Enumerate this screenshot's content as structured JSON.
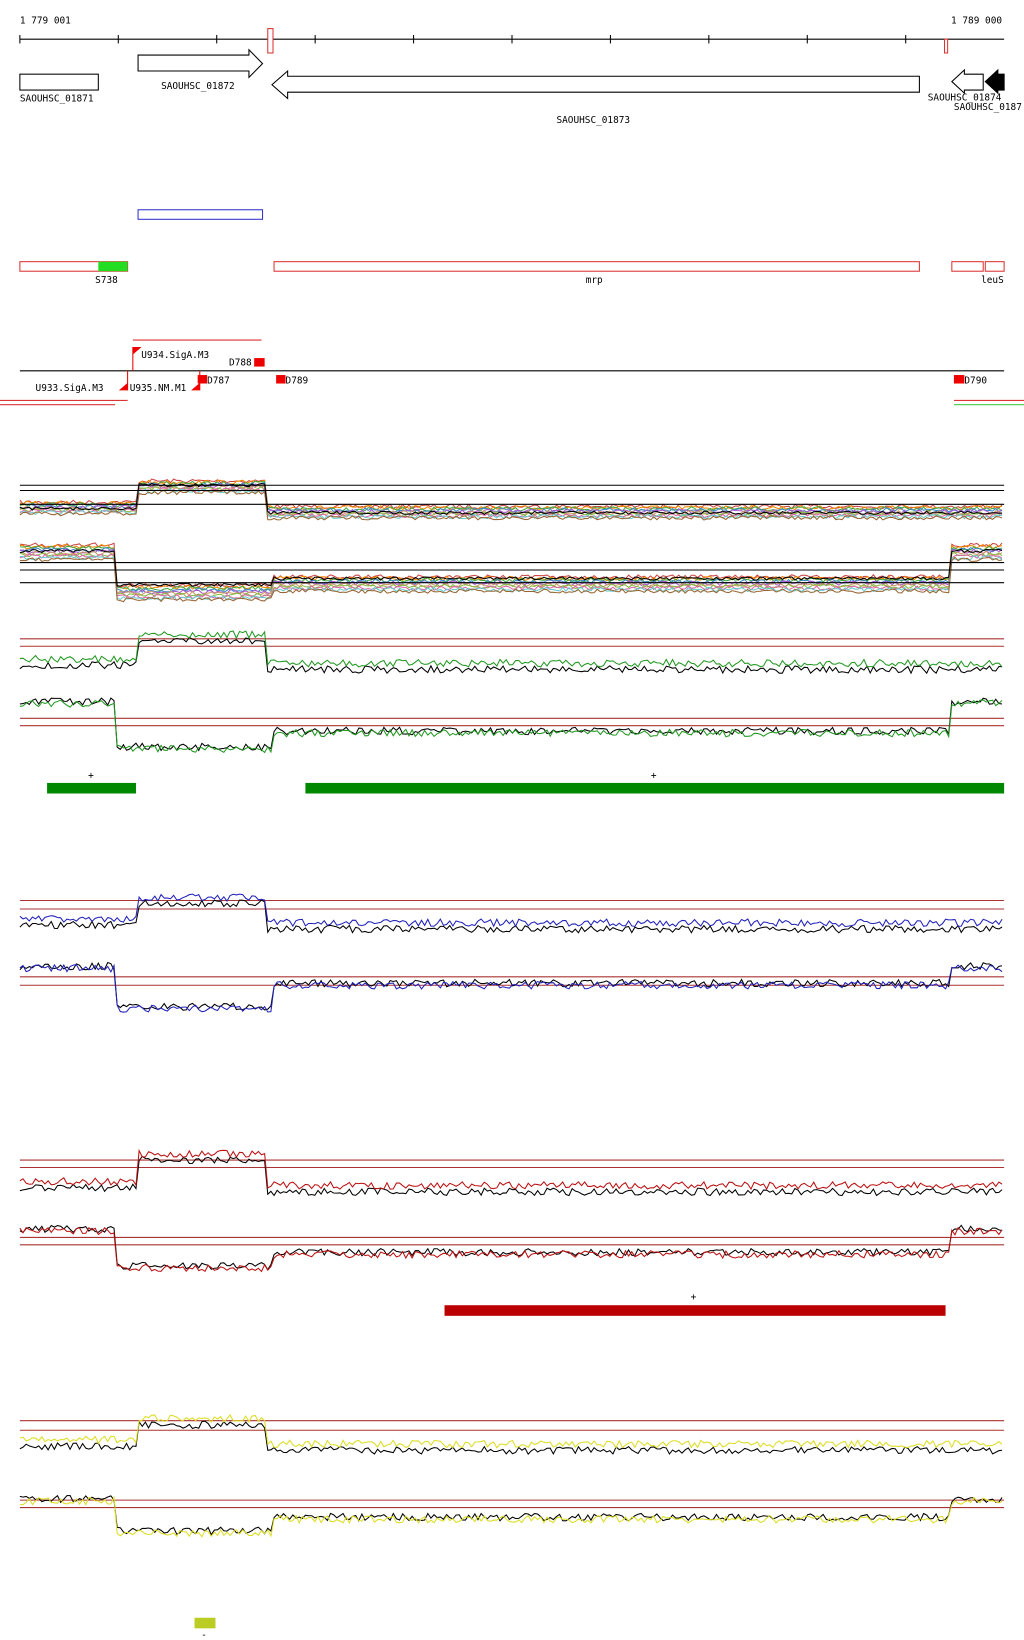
{
  "header": {
    "start": "1 779 001",
    "end": "1 789 000"
  },
  "genes": [
    "SAOUHSC_01871",
    "SAOUHSC_01872",
    "SAOUHSC_01873",
    "SAOUHSC_01874",
    "SAOUHSC_0187"
  ],
  "features": [
    "S738",
    "mrp",
    "leuS"
  ],
  "promoters": [
    "U934.SigA.M3",
    "U935.NM.M1",
    "U933.SigA.M3"
  ],
  "terminators": [
    "D788",
    "D787",
    "D789",
    "D790"
  ],
  "segments": [
    "+",
    "+",
    "+",
    "-"
  ]
}
